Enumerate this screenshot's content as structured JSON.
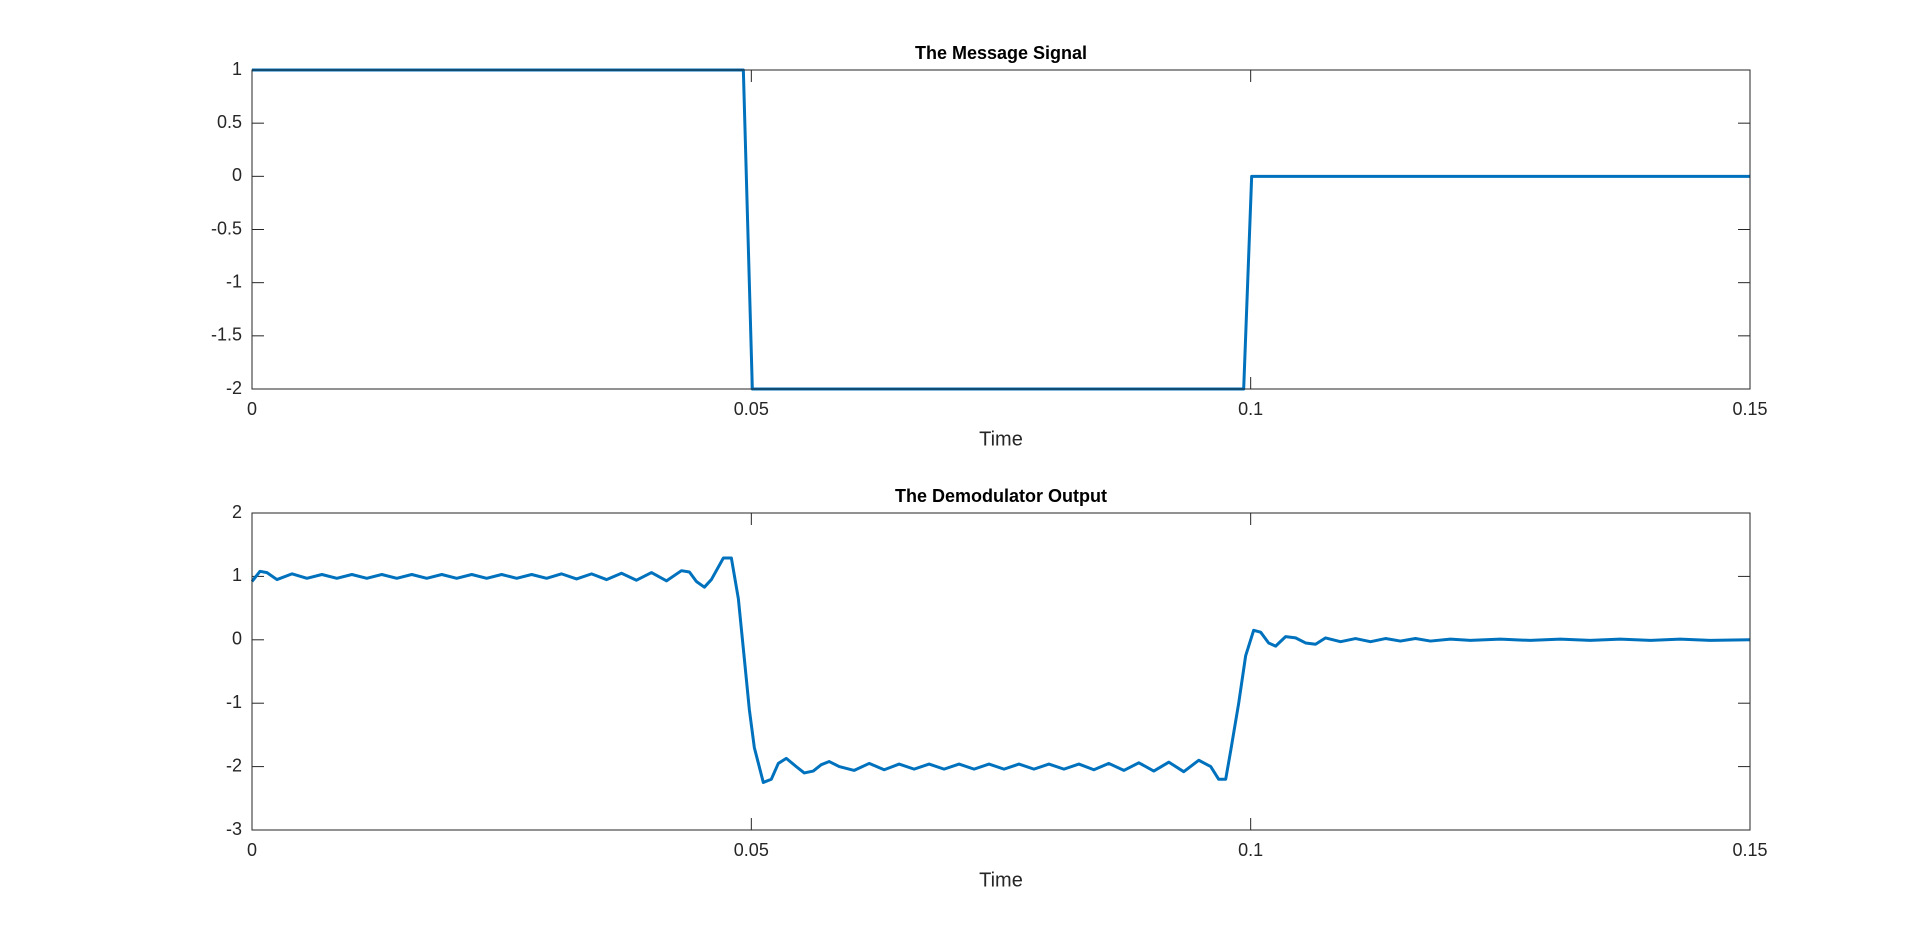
{
  "chart_data": [
    {
      "type": "line",
      "title": "The Message Signal",
      "x_label": "Time",
      "x": [
        0,
        0.0492,
        0.0501,
        0.0993,
        0.1001,
        0.15
      ],
      "series": [
        {
          "color": "#0072bd",
          "values": [
            1,
            1,
            -2,
            -2,
            0,
            0
          ]
        }
      ],
      "xlim": [
        0,
        0.15
      ],
      "xticks": [
        0,
        0.05,
        0.1,
        0.15
      ],
      "ylim": [
        -2,
        1
      ],
      "yticks": [
        -2,
        -1.5,
        -1,
        -0.5,
        0,
        0.5,
        1
      ],
      "grid": false
    },
    {
      "type": "line",
      "title": "The Demodulator Output",
      "x_label": "Time",
      "x": [
        0,
        0.0008,
        0.0015,
        0.0025,
        0.004,
        0.0055,
        0.007,
        0.0085,
        0.01,
        0.0115,
        0.013,
        0.0145,
        0.016,
        0.0175,
        0.019,
        0.0205,
        0.022,
        0.0235,
        0.025,
        0.0265,
        0.028,
        0.0295,
        0.031,
        0.0325,
        0.034,
        0.0355,
        0.037,
        0.0385,
        0.04,
        0.0415,
        0.043,
        0.0438,
        0.0445,
        0.0453,
        0.046,
        0.0472,
        0.048,
        0.0487,
        0.0493,
        0.0498,
        0.0503,
        0.0512,
        0.052,
        0.0527,
        0.0535,
        0.0545,
        0.0553,
        0.0562,
        0.057,
        0.0578,
        0.0588,
        0.0603,
        0.0618,
        0.0633,
        0.0648,
        0.0663,
        0.0678,
        0.0693,
        0.0708,
        0.0723,
        0.0738,
        0.0753,
        0.0768,
        0.0783,
        0.0798,
        0.0813,
        0.0828,
        0.0843,
        0.0858,
        0.0873,
        0.0888,
        0.0903,
        0.0918,
        0.0933,
        0.0948,
        0.096,
        0.0968,
        0.0975,
        0.098,
        0.0988,
        0.0995,
        0.1003,
        0.101,
        0.1018,
        0.1025,
        0.1035,
        0.1045,
        0.1055,
        0.1065,
        0.1075,
        0.109,
        0.1105,
        0.112,
        0.1135,
        0.115,
        0.1165,
        0.118,
        0.12,
        0.122,
        0.125,
        0.128,
        0.131,
        0.134,
        0.137,
        0.14,
        0.143,
        0.146,
        0.15
      ],
      "series": [
        {
          "color": "#0072bd",
          "values": [
            0.92,
            1.08,
            1.06,
            0.95,
            1.04,
            0.97,
            1.03,
            0.97,
            1.03,
            0.97,
            1.03,
            0.97,
            1.03,
            0.97,
            1.03,
            0.97,
            1.03,
            0.97,
            1.03,
            0.97,
            1.03,
            0.97,
            1.04,
            0.96,
            1.04,
            0.95,
            1.05,
            0.94,
            1.06,
            0.93,
            1.09,
            1.07,
            0.92,
            0.83,
            0.95,
            1.29,
            1.29,
            0.65,
            -0.3,
            -1.1,
            -1.7,
            -2.25,
            -2.2,
            -1.95,
            -1.87,
            -2.0,
            -2.1,
            -2.07,
            -1.97,
            -1.92,
            -2.0,
            -2.06,
            -1.95,
            -2.05,
            -1.96,
            -2.04,
            -1.96,
            -2.04,
            -1.96,
            -2.04,
            -1.96,
            -2.04,
            -1.96,
            -2.04,
            -1.96,
            -2.04,
            -1.96,
            -2.05,
            -1.95,
            -2.06,
            -1.94,
            -2.07,
            -1.93,
            -2.08,
            -1.9,
            -2.0,
            -2.2,
            -2.2,
            -1.75,
            -1.0,
            -0.25,
            0.15,
            0.12,
            -0.05,
            -0.1,
            0.05,
            0.03,
            -0.05,
            -0.07,
            0.03,
            -0.03,
            0.02,
            -0.03,
            0.02,
            -0.02,
            0.02,
            -0.02,
            0.01,
            -0.01,
            0.01,
            -0.01,
            0.01,
            -0.01,
            0.01,
            -0.01,
            0.01,
            -0.01,
            0
          ]
        }
      ],
      "xlim": [
        0,
        0.15
      ],
      "xticks": [
        0,
        0.05,
        0.1,
        0.15
      ],
      "ylim": [
        -3,
        2
      ],
      "yticks": [
        -3,
        -2,
        -1,
        0,
        1,
        2
      ],
      "grid": false
    }
  ]
}
